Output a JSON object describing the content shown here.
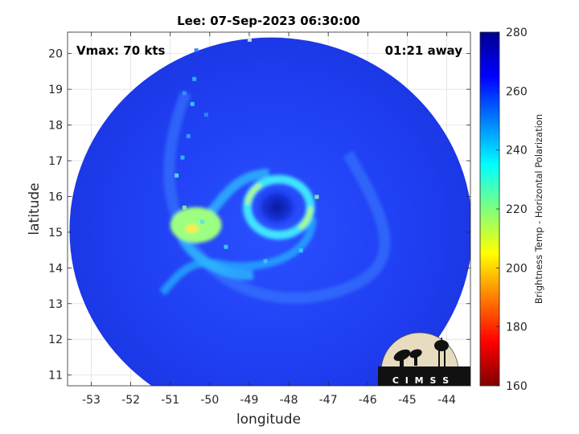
{
  "title": "Lee: 07-Sep-2023 06:30:00",
  "annotations": {
    "vmax": "Vmax: 70 kts",
    "time_away": "01:21 away"
  },
  "map": {
    "xlabel": "longitude",
    "ylabel": "latitude",
    "xlim": [
      -53.6,
      -43.4
    ],
    "ylim": [
      10.7,
      20.6
    ],
    "xticks": [
      -53,
      -52,
      -51,
      -50,
      -49,
      -48,
      -47,
      -46,
      -45,
      -44
    ],
    "yticks": [
      11,
      12,
      13,
      14,
      15,
      16,
      17,
      18,
      19,
      20
    ],
    "grid": true,
    "storm_center": {
      "lon": -48.3,
      "lat": 15.7
    },
    "swath_center": {
      "lon": -48.45,
      "lat": 15.05
    },
    "swath_radius_deg": {
      "lon": 5.1,
      "lat": 5.4
    }
  },
  "colorbar": {
    "label": "Brightness Temp - Horizontal Polarization",
    "min": 160,
    "max": 280,
    "ticks": [
      160,
      180,
      200,
      220,
      240,
      260,
      280
    ],
    "colormap": [
      "#7f0000",
      "#ff0000",
      "#ff7f00",
      "#ffff00",
      "#7fff7f",
      "#00ffff",
      "#007fff",
      "#0000ff",
      "#00008f"
    ]
  },
  "logo": {
    "text": "C I M S S",
    "colors": {
      "disc": "#e8dcc0",
      "ground": "#111111"
    }
  }
}
